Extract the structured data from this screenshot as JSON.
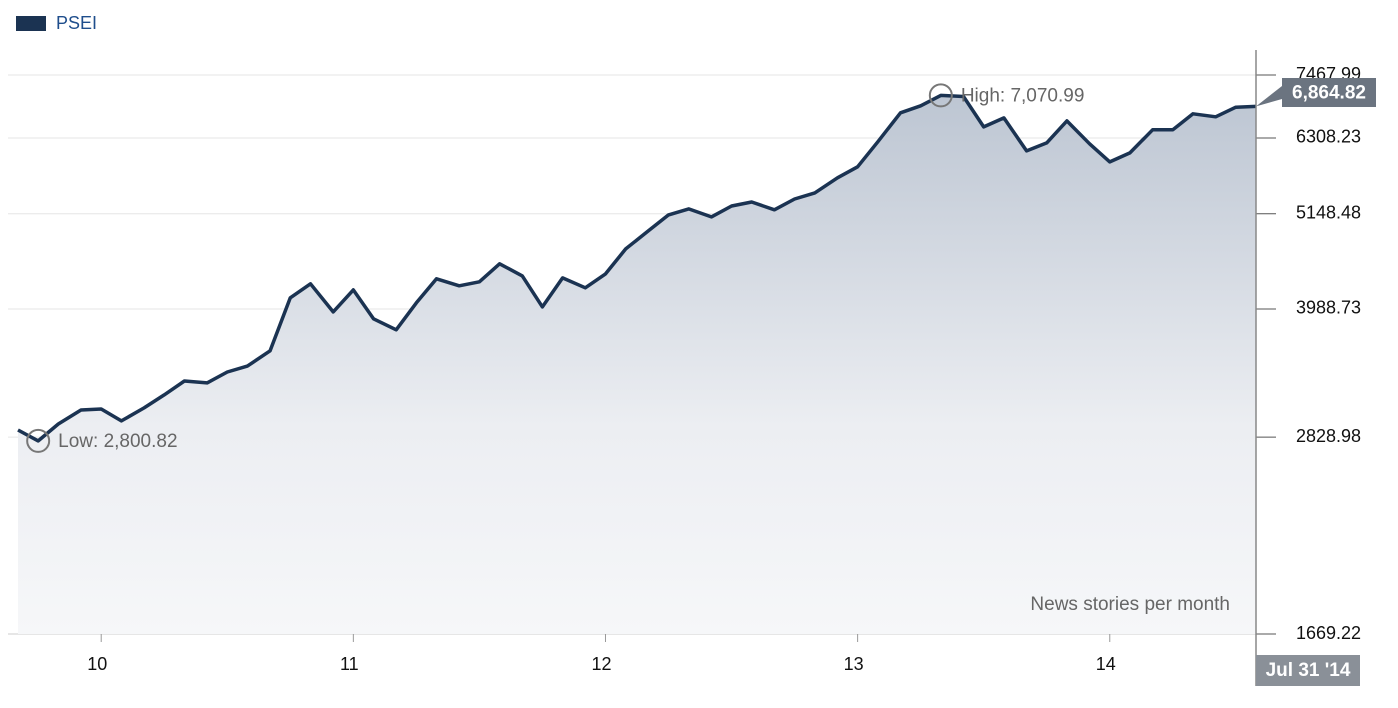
{
  "chart_data": {
    "type": "area",
    "series": [
      {
        "name": "PSEI",
        "color": "#1b3352",
        "values": [
          2884,
          2800.82,
          2931,
          3043,
          3051,
          2955,
          3060,
          3168,
          3289,
          3272,
          3369,
          3423,
          3566,
          4110,
          4267,
          3958,
          4198,
          3885,
          3772,
          4055,
          4325,
          4245,
          4290,
          4502,
          4359,
          4011,
          4335,
          4222,
          4382,
          4686,
          4918,
          5133,
          5216,
          5106,
          5257,
          5314,
          5203,
          5357,
          5445,
          5669,
          5839,
          6243,
          6749,
          6877,
          7070.99,
          7050,
          6499,
          6656,
          6094,
          6225,
          6603,
          6211,
          5916,
          6061,
          6448,
          6448,
          6731,
          6677,
          6850,
          6864.82
        ]
      }
    ],
    "x": [
      2009.67,
      2009.75,
      2009.83,
      2009.92,
      2010.0,
      2010.08,
      2010.17,
      2010.25,
      2010.33,
      2010.42,
      2010.5,
      2010.58,
      2010.67,
      2010.75,
      2010.83,
      2010.92,
      2011,
      2011.08,
      2011.17,
      2011.25,
      2011.33,
      2011.42,
      2011.5,
      2011.58,
      2011.67,
      2011.75,
      2011.83,
      2011.92,
      2012,
      2012.08,
      2012.17,
      2012.25,
      2012.33,
      2012.42,
      2012.5,
      2012.58,
      2012.67,
      2012.75,
      2012.83,
      2012.92,
      2013,
      2013.08,
      2013.17,
      2013.25,
      2013.33,
      2013.42,
      2013.5,
      2013.58,
      2013.67,
      2013.75,
      2013.83,
      2013.92,
      2014,
      2014.08,
      2014.17,
      2014.25,
      2014.33,
      2014.42,
      2014.5,
      2014.58
    ],
    "xlim": [
      2009.67,
      2014.58
    ],
    "xticks": [
      {
        "value": 2010,
        "label": "10"
      },
      {
        "value": 2011,
        "label": "11"
      },
      {
        "value": 2012,
        "label": "12"
      },
      {
        "value": 2013,
        "label": "13"
      },
      {
        "value": 2014,
        "label": "14"
      }
    ],
    "ylim": [
      1669.22,
      7467.99
    ],
    "yticks": [
      1669.22,
      2828.98,
      3988.73,
      5148.48,
      6308.23,
      7467.99
    ],
    "log_scale_y": true,
    "grid": true,
    "legend": "top-left",
    "annotations": [
      {
        "label": "Low: 2,800.82",
        "value": 2800.82,
        "x": 2009.75
      },
      {
        "label": "High: 7,070.99",
        "value": 7070.99,
        "x": 2013.33
      }
    ],
    "current_value_label": "6,864.82",
    "x_end_label": "Jul 31 '14",
    "note": "News stories per month"
  }
}
